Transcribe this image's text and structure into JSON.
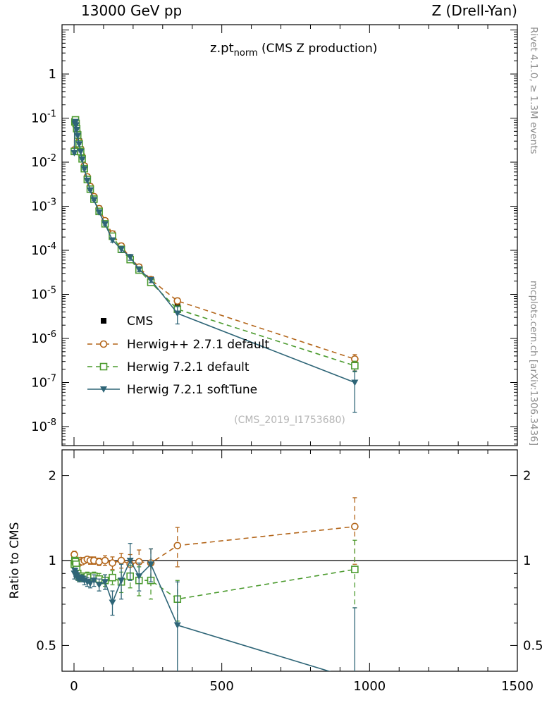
{
  "header": {
    "left": "13000 GeV pp",
    "right": "Z (Drell-Yan)"
  },
  "main_title": {
    "observable": "z.pt",
    "subscript": "norm",
    "suffix": " (CMS Z production)"
  },
  "watermark": "(CMS_2019_I1753680)",
  "side_notes": {
    "top_right": "Rivet 4.1.0, ≥ 1.3M events",
    "bottom_right": "mcplots.cern.ch [arXiv:1306.3436]"
  },
  "chart_data": {
    "type": "line",
    "title": "z.pt_norm (CMS Z production)",
    "x": [
      1,
      3,
      5,
      7,
      9,
      12.5,
      17.5,
      22.5,
      27.5,
      35,
      45,
      55,
      67.5,
      85,
      105,
      130,
      160,
      190,
      220,
      260,
      350,
      950
    ],
    "x_axis": {
      "lim": [
        -40,
        1500
      ],
      "ticks": [
        0,
        500,
        1000,
        1500
      ],
      "minor_step": 100
    },
    "main_axis": {
      "scale": "log",
      "lim": [
        4e-09,
        13
      ],
      "tick_exponents": [
        0,
        -1,
        -2,
        -3,
        -4,
        -5,
        -6,
        -7,
        -8
      ]
    },
    "ratio_axis": {
      "scale": "log",
      "lim": [
        0.405,
        2.47
      ],
      "ticks": [
        0.5,
        1,
        2
      ],
      "minor_ticks": [
        0.6,
        0.7,
        0.8,
        0.9
      ],
      "label": "Ratio to CMS"
    },
    "series": [
      {
        "name": "CMS",
        "marker": "filled-square",
        "color": "#000000",
        "line": "none",
        "values": [
          0.018,
          0.082,
          0.092,
          0.078,
          0.062,
          0.046,
          0.03,
          0.02,
          0.0135,
          0.0082,
          0.0046,
          0.0028,
          0.00165,
          0.00089,
          0.00047,
          0.00024,
          0.000125,
          7e-05,
          4.2e-05,
          2.2e-05,
          6.3e-06,
          2.6e-07
        ],
        "rel_err": [
          0.05,
          0.03,
          0.03,
          0.03,
          0.03,
          0.03,
          0.03,
          0.03,
          0.03,
          0.03,
          0.03,
          0.03,
          0.04,
          0.04,
          0.04,
          0.05,
          0.05,
          0.06,
          0.07,
          0.08,
          0.15,
          0.3
        ]
      },
      {
        "name": "Herwig++ 2.7.1 default",
        "marker": "open-circle",
        "color": "#b36519",
        "line": "dashed",
        "values": [
          0.0189,
          0.0795,
          0.0883,
          0.0757,
          0.0589,
          0.0446,
          0.0294,
          0.02,
          0.0134,
          0.0082,
          0.00465,
          0.0028,
          0.00165,
          0.00088,
          0.00047,
          0.000235,
          0.000125,
          6.8e-05,
          4.16e-05,
          2.16e-05,
          7.1e-06,
          3.4e-07
        ],
        "ratio": [
          1.05,
          0.97,
          0.96,
          0.97,
          0.95,
          0.97,
          0.98,
          1.0,
          0.99,
          1.0,
          1.01,
          1.0,
          1.0,
          0.99,
          1.0,
          0.98,
          1.0,
          0.97,
          0.99,
          0.98,
          1.13,
          1.32
        ],
        "ratio_err": [
          0.03,
          0.02,
          0.02,
          0.02,
          0.02,
          0.02,
          0.02,
          0.02,
          0.02,
          0.02,
          0.02,
          0.03,
          0.03,
          0.03,
          0.04,
          0.05,
          0.06,
          0.08,
          0.1,
          0.12,
          0.18,
          0.35
        ]
      },
      {
        "name": "Herwig 7.2.1 default",
        "marker": "open-square",
        "color": "#4c9b2f",
        "line": "dashed",
        "values": [
          0.0175,
          0.082,
          0.0911,
          0.0757,
          0.0577,
          0.0414,
          0.0264,
          0.0174,
          0.0119,
          0.00713,
          0.00405,
          0.00244,
          0.00145,
          0.000765,
          0.0004,
          0.000209,
          0.000105,
          6.16e-05,
          3.57e-05,
          1.87e-05,
          4.6e-06,
          2.4e-07
        ],
        "ratio": [
          0.97,
          1.0,
          0.99,
          0.97,
          0.93,
          0.9,
          0.88,
          0.87,
          0.88,
          0.87,
          0.88,
          0.87,
          0.88,
          0.86,
          0.85,
          0.87,
          0.84,
          0.88,
          0.85,
          0.85,
          0.73,
          0.93
        ],
        "ratio_err": [
          0.03,
          0.02,
          0.02,
          0.02,
          0.02,
          0.02,
          0.02,
          0.02,
          0.02,
          0.02,
          0.03,
          0.03,
          0.03,
          0.04,
          0.04,
          0.05,
          0.07,
          0.08,
          0.1,
          0.12,
          0.12,
          0.25
        ]
      },
      {
        "name": "Herwig 7.2.1 softTune",
        "marker": "filled-triangle-down",
        "color": "#2e6577",
        "line": "solid",
        "values": [
          0.0162,
          0.0754,
          0.0828,
          0.0694,
          0.0546,
          0.04,
          0.0258,
          0.0174,
          0.0116,
          0.00697,
          0.00386,
          0.00232,
          0.0014,
          0.00073,
          0.000395,
          0.00017,
          0.000106,
          7e-05,
          3.7e-05,
          2.13e-05,
          3.7e-06,
          1e-07
        ],
        "ratio": [
          0.9,
          0.92,
          0.9,
          0.89,
          0.88,
          0.87,
          0.86,
          0.87,
          0.86,
          0.85,
          0.84,
          0.83,
          0.85,
          0.82,
          0.84,
          0.71,
          0.85,
          1.0,
          0.88,
          0.97,
          0.59,
          0.38
        ],
        "ratio_err": [
          0.04,
          0.02,
          0.02,
          0.02,
          0.02,
          0.02,
          0.02,
          0.02,
          0.02,
          0.03,
          0.03,
          0.03,
          0.04,
          0.04,
          0.05,
          0.07,
          0.12,
          0.15,
          0.1,
          0.13,
          0.25,
          0.3
        ]
      }
    ]
  }
}
